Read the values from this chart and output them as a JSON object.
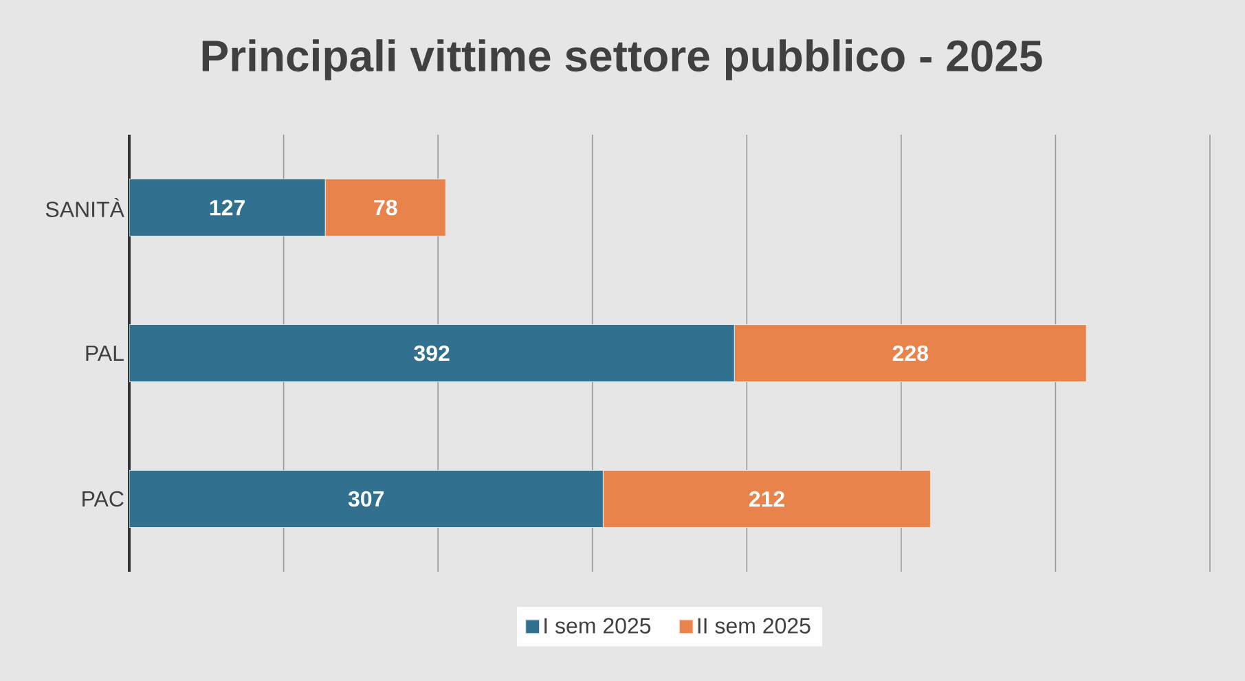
{
  "chart_data": {
    "type": "bar",
    "orientation": "horizontal",
    "stacked": true,
    "title": "Principali vittime settore pubblico - 2025",
    "categories": [
      "SANITÀ",
      "PAL",
      "PAC"
    ],
    "series": [
      {
        "name": "I sem 2025",
        "color": "#31718f",
        "values": [
          127,
          392,
          307
        ]
      },
      {
        "name": "II sem 2025",
        "color": "#e8834b",
        "values": [
          78,
          228,
          212
        ]
      }
    ],
    "xlim": [
      0,
      700
    ],
    "xticks": [
      {
        "value": 100,
        "label": null
      },
      {
        "value": 200,
        "label": null
      },
      {
        "value": 300,
        "label": null
      },
      {
        "value": 400,
        "label": null
      },
      {
        "value": 500,
        "label": null
      },
      {
        "value": 600,
        "label": null
      },
      {
        "value": 700,
        "label": null
      }
    ],
    "tick_labels": "y",
    "grid": "x",
    "legend": "bottom",
    "data_labels": true
  }
}
